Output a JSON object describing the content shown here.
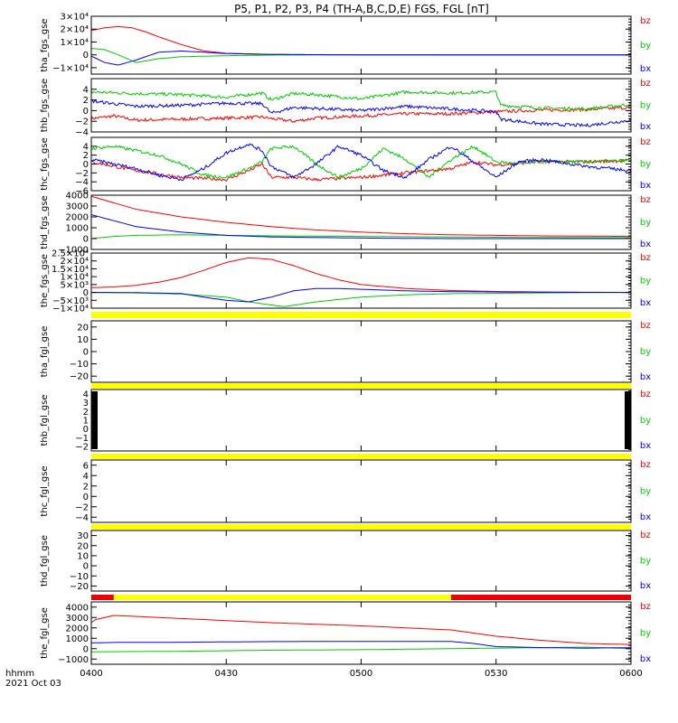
{
  "title": "P5, P1, P2, P3, P4 (TH-A,B,C,D,E) FGS, FGL [nT]",
  "time_axis": {
    "corner_label": "hhmm",
    "date_label": "2021 Oct 03",
    "ticks": [
      "0400",
      "0430",
      "0500",
      "0530",
      "0600"
    ],
    "tick_minutes": [
      0,
      30,
      60,
      90,
      120
    ],
    "range_minutes": [
      0,
      120
    ]
  },
  "colors": {
    "bx": "#0000ff",
    "by": "#00cc00",
    "bz": "#ff0000",
    "bar_yellow": "#ffff00",
    "bar_red": "#ee0000"
  },
  "chart_data": [
    {
      "type": "line",
      "ylabel": "tha_fgs_gse",
      "ylim": [
        -15000,
        30000
      ],
      "yticks": [
        {
          "v": 30000,
          "t": "3×10⁴"
        },
        {
          "v": 20000,
          "t": "2×10⁴"
        },
        {
          "v": 10000,
          "t": "1×10⁴"
        },
        {
          "v": 0,
          "t": "0"
        },
        {
          "v": -10000,
          "t": "−1×10⁴"
        }
      ],
      "legend": [
        "bz",
        "by",
        "bx"
      ],
      "bar": null,
      "series": [
        {
          "name": "bz",
          "x": [
            0,
            3,
            6,
            9,
            12,
            15,
            20,
            25,
            30,
            40,
            50,
            60,
            80,
            100,
            120
          ],
          "y": [
            19000,
            21000,
            22000,
            21000,
            18000,
            14000,
            8000,
            3000,
            1200,
            300,
            100,
            50,
            0,
            0,
            0
          ]
        },
        {
          "name": "by",
          "x": [
            0,
            3,
            6,
            10,
            15,
            20,
            30,
            40,
            50,
            60,
            80,
            100,
            120
          ],
          "y": [
            5000,
            4000,
            0,
            -6000,
            -3000,
            -1500,
            -700,
            -200,
            -100,
            -50,
            0,
            0,
            0
          ]
        },
        {
          "name": "bx",
          "x": [
            0,
            3,
            6,
            10,
            15,
            20,
            25,
            30,
            40,
            50,
            60,
            80,
            100,
            120
          ],
          "y": [
            -1000,
            -6000,
            -8000,
            -4000,
            2000,
            3000,
            2000,
            1000,
            300,
            100,
            0,
            0,
            0,
            0
          ]
        }
      ]
    },
    {
      "type": "line",
      "ylabel": "thb_fgs_gse",
      "ylim": [
        -4,
        6
      ],
      "yticks": [
        {
          "v": 4,
          "t": "4"
        },
        {
          "v": 2,
          "t": "2"
        },
        {
          "v": 0,
          "t": "0"
        },
        {
          "v": -2,
          "t": "−2"
        },
        {
          "v": -4,
          "t": "−4"
        }
      ],
      "legend": [
        "bz",
        "by",
        "bx"
      ],
      "bar": null,
      "series": [
        {
          "name": "bz",
          "x": [
            0,
            5,
            10,
            20,
            30,
            38,
            40,
            45,
            50,
            60,
            70,
            80,
            90,
            100,
            110,
            120
          ],
          "y": [
            -1.5,
            -1.0,
            -1.8,
            -1.6,
            -1.4,
            -1.2,
            -1.5,
            -2.0,
            -1.4,
            -1.0,
            -0.6,
            -0.6,
            -0.2,
            0.1,
            0.2,
            0.6
          ]
        },
        {
          "name": "by",
          "x": [
            0,
            10,
            20,
            30,
            38,
            40,
            45,
            50,
            60,
            70,
            80,
            90,
            91,
            100,
            110,
            120
          ],
          "y": [
            3.5,
            3.2,
            3.0,
            2.5,
            3.3,
            2.0,
            3.2,
            3.0,
            2.2,
            3.5,
            3.3,
            3.5,
            1.0,
            0.5,
            0.3,
            1.2
          ]
        },
        {
          "name": "bx",
          "x": [
            0,
            10,
            20,
            30,
            38,
            40,
            45,
            50,
            60,
            70,
            80,
            90,
            91,
            100,
            110,
            120
          ],
          "y": [
            1.8,
            0.8,
            1.0,
            1.4,
            1.3,
            -0.5,
            0.6,
            0.4,
            0.0,
            0.8,
            0.3,
            -0.2,
            -1.6,
            -2.5,
            -2.8,
            -1.8
          ]
        }
      ]
    },
    {
      "type": "line",
      "ylabel": "thc_fgs_gse",
      "ylim": [
        -6,
        6
      ],
      "yticks": [
        {
          "v": 4,
          "t": "4"
        },
        {
          "v": 2,
          "t": "2"
        },
        {
          "v": 0,
          "t": "0"
        },
        {
          "v": -2,
          "t": "−2"
        },
        {
          "v": -4,
          "t": "−4"
        },
        {
          "v": -6,
          "t": "−6"
        }
      ],
      "legend": [
        "bz",
        "by",
        "bx"
      ],
      "bar": null,
      "series": [
        {
          "name": "bz",
          "x": [
            0,
            5,
            10,
            20,
            30,
            35,
            38,
            40,
            45,
            50,
            60,
            70,
            80,
            85,
            90,
            100,
            110,
            120
          ],
          "y": [
            0.5,
            -0.5,
            -1.5,
            -3.0,
            -3.5,
            -1.5,
            0.0,
            -3.0,
            -3.0,
            -3.5,
            -3.0,
            -2.0,
            -1.0,
            0.5,
            -0.2,
            0.5,
            0.5,
            0.8
          ]
        },
        {
          "name": "by",
          "x": [
            0,
            5,
            10,
            15,
            20,
            25,
            30,
            35,
            38,
            40,
            45,
            50,
            55,
            60,
            65,
            70,
            75,
            80,
            85,
            90,
            95,
            100,
            110,
            120
          ],
          "y": [
            3.5,
            4.0,
            3.0,
            2.0,
            0.0,
            -2.5,
            -3.0,
            -1.0,
            0.5,
            3.5,
            4.0,
            0.0,
            -3.0,
            -1.0,
            3.5,
            1.0,
            -3.0,
            1.0,
            4.0,
            0.5,
            0.0,
            0.5,
            0.5,
            0.8
          ]
        },
        {
          "name": "bx",
          "x": [
            0,
            5,
            10,
            15,
            20,
            25,
            30,
            35,
            38,
            40,
            45,
            50,
            55,
            60,
            65,
            70,
            75,
            80,
            85,
            90,
            95,
            100,
            110,
            120
          ],
          "y": [
            1.0,
            0.0,
            -1.0,
            -2.5,
            -3.5,
            -1.0,
            2.5,
            4.5,
            3.0,
            -0.5,
            -3.0,
            0.0,
            4.0,
            2.0,
            -1.5,
            -3.0,
            1.0,
            4.0,
            0.5,
            -3.0,
            0.5,
            1.0,
            -0.5,
            -1.5
          ]
        }
      ]
    },
    {
      "type": "line",
      "ylabel": "thd_fgs_gse",
      "ylim": [
        -1000,
        4000
      ],
      "yticks": [
        {
          "v": 4000,
          "t": "4000"
        },
        {
          "v": 3000,
          "t": "3000"
        },
        {
          "v": 2000,
          "t": "2000"
        },
        {
          "v": 1000,
          "t": "1000"
        },
        {
          "v": 0,
          "t": "0"
        },
        {
          "v": -1000,
          "t": "−1000"
        }
      ],
      "legend": [
        "bz",
        "by",
        "bx"
      ],
      "bar": null,
      "series": [
        {
          "name": "bz",
          "x": [
            0,
            10,
            20,
            30,
            40,
            50,
            60,
            70,
            80,
            100,
            120
          ],
          "y": [
            3900,
            2700,
            2000,
            1500,
            1100,
            800,
            600,
            450,
            350,
            250,
            200
          ]
        },
        {
          "name": "by",
          "x": [
            0,
            5,
            10,
            20,
            30,
            40,
            60,
            80,
            100,
            120
          ],
          "y": [
            0,
            200,
            300,
            350,
            300,
            250,
            200,
            150,
            100,
            80
          ]
        },
        {
          "name": "bx",
          "x": [
            0,
            10,
            20,
            30,
            40,
            60,
            80,
            100,
            120
          ],
          "y": [
            2200,
            1100,
            600,
            300,
            150,
            50,
            0,
            0,
            0
          ]
        }
      ]
    },
    {
      "type": "line",
      "ylabel": "the_fgs_gse",
      "ylim": [
        -10000,
        25000
      ],
      "yticks": [
        {
          "v": 25000,
          "t": "2.5×10⁴"
        },
        {
          "v": 20000,
          "t": "2×10⁴"
        },
        {
          "v": 15000,
          "t": "1.5×10⁴"
        },
        {
          "v": 10000,
          "t": "1×10⁴"
        },
        {
          "v": 5000,
          "t": "5×10³"
        },
        {
          "v": 0,
          "t": "0"
        },
        {
          "v": -5000,
          "t": "−5×10³"
        },
        {
          "v": -10000,
          "t": "−1×10⁴"
        }
      ],
      "legend": [
        "bz",
        "by",
        "bx"
      ],
      "bar": null,
      "series": [
        {
          "name": "bz",
          "x": [
            0,
            5,
            10,
            15,
            20,
            25,
            30,
            35,
            40,
            45,
            50,
            55,
            60,
            70,
            80,
            90,
            100,
            110,
            120
          ],
          "y": [
            3000,
            3500,
            4500,
            6500,
            9500,
            14000,
            19000,
            22000,
            21000,
            17000,
            12000,
            8000,
            5000,
            2500,
            1200,
            600,
            300,
            100,
            0
          ]
        },
        {
          "name": "by",
          "x": [
            0,
            10,
            20,
            30,
            35,
            40,
            43,
            50,
            60,
            70,
            80,
            100,
            120
          ],
          "y": [
            0,
            -300,
            -1000,
            -3000,
            -6000,
            -8000,
            -9000,
            -6000,
            -3000,
            -1500,
            -800,
            -300,
            0
          ]
        },
        {
          "name": "bx",
          "x": [
            0,
            10,
            20,
            25,
            30,
            35,
            40,
            45,
            50,
            55,
            60,
            70,
            80,
            100,
            120
          ],
          "y": [
            0,
            -100,
            -700,
            -3000,
            -5000,
            -6000,
            -3000,
            1000,
            2500,
            2500,
            2000,
            1000,
            500,
            100,
            0
          ]
        }
      ]
    },
    {
      "type": "line",
      "ylabel": "tha_fgl_gse",
      "ylim": [
        -25,
        25
      ],
      "yticks": [
        {
          "v": 20,
          "t": "20"
        },
        {
          "v": 10,
          "t": "10"
        },
        {
          "v": 0,
          "t": "0"
        },
        {
          "v": -10,
          "t": "−10"
        },
        {
          "v": -20,
          "t": "−20"
        }
      ],
      "legend": [
        "bz",
        "by",
        "bx"
      ],
      "series": [],
      "bar": [
        {
          "from": 0,
          "to": 120,
          "color": "bar_yellow"
        }
      ]
    },
    {
      "type": "line",
      "ylabel": "thb_fgl_gse",
      "ylim": [
        -2.5,
        4.5
      ],
      "yticks": [
        {
          "v": 4,
          "t": "4"
        },
        {
          "v": 3,
          "t": "3"
        },
        {
          "v": 2,
          "t": "2"
        },
        {
          "v": 1,
          "t": "1"
        },
        {
          "v": 0,
          "t": "0"
        },
        {
          "v": -1,
          "t": "−1"
        },
        {
          "v": -2,
          "t": "−2"
        }
      ],
      "legend": [
        "bz",
        "by",
        "bx"
      ],
      "series": [],
      "dense_minor": true,
      "bar": [
        {
          "from": 0,
          "to": 120,
          "color": "bar_yellow"
        }
      ]
    },
    {
      "type": "line",
      "ylabel": "thc_fgl_gse",
      "ylim": [
        -5,
        7
      ],
      "yticks": [
        {
          "v": 6,
          "t": "6"
        },
        {
          "v": 4,
          "t": "4"
        },
        {
          "v": 2,
          "t": "2"
        },
        {
          "v": 0,
          "t": "0"
        },
        {
          "v": -2,
          "t": "−2"
        },
        {
          "v": -4,
          "t": "−4"
        }
      ],
      "legend": [
        "bz",
        "by",
        "bx"
      ],
      "series": [],
      "bar": [
        {
          "from": 0,
          "to": 120,
          "color": "bar_yellow"
        }
      ]
    },
    {
      "type": "line",
      "ylabel": "thd_fgl_gse",
      "ylim": [
        -25,
        35
      ],
      "yticks": [
        {
          "v": 30,
          "t": "30"
        },
        {
          "v": 20,
          "t": "20"
        },
        {
          "v": 10,
          "t": "10"
        },
        {
          "v": 0,
          "t": "0"
        },
        {
          "v": -10,
          "t": "−10"
        },
        {
          "v": -20,
          "t": "−20"
        }
      ],
      "legend": [
        "bz",
        "by",
        "bx"
      ],
      "series": [],
      "bar": [
        {
          "from": 0,
          "to": 120,
          "color": "bar_yellow"
        }
      ]
    },
    {
      "type": "line",
      "ylabel": "the_fgl_gse",
      "ylim": [
        -1500,
        4500
      ],
      "yticks": [
        {
          "v": 4000,
          "t": "4000"
        },
        {
          "v": 3000,
          "t": "3000"
        },
        {
          "v": 2000,
          "t": "2000"
        },
        {
          "v": 1000,
          "t": "1000"
        },
        {
          "v": 0,
          "t": "0"
        },
        {
          "v": -1000,
          "t": "−1000"
        }
      ],
      "legend": [
        "bz",
        "by",
        "bx"
      ],
      "bar": [
        {
          "from": 0,
          "to": 5,
          "color": "bar_red"
        },
        {
          "from": 5,
          "to": 80,
          "color": "bar_yellow"
        },
        {
          "from": 80,
          "to": 120,
          "color": "bar_red"
        }
      ],
      "series": [
        {
          "name": "bz",
          "x": [
            0,
            1,
            5,
            20,
            40,
            60,
            70,
            80,
            85,
            90,
            100,
            110,
            120
          ],
          "y": [
            2500,
            2800,
            3200,
            2900,
            2500,
            2200,
            2000,
            1800,
            1500,
            1200,
            800,
            500,
            400
          ]
        },
        {
          "name": "by",
          "x": [
            0,
            20,
            40,
            60,
            80,
            90,
            100,
            110,
            120
          ],
          "y": [
            -300,
            -250,
            -150,
            -100,
            0,
            50,
            100,
            150,
            0
          ]
        },
        {
          "name": "bx",
          "x": [
            0,
            5,
            20,
            40,
            60,
            80,
            85,
            90,
            100,
            110,
            120
          ],
          "y": [
            550,
            600,
            620,
            680,
            700,
            700,
            500,
            200,
            100,
            50,
            100
          ]
        }
      ]
    }
  ]
}
